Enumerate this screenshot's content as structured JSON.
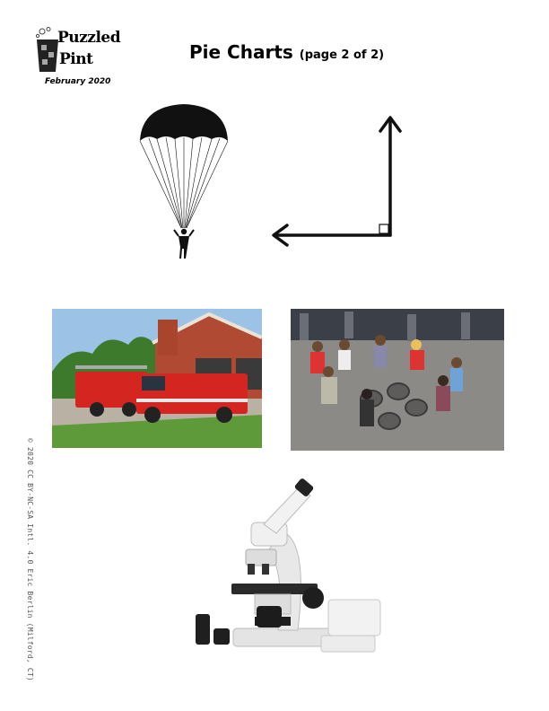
{
  "header": {
    "logo_line1": "Puzzled",
    "logo_line2": "Pint",
    "logo_date": "February 2020",
    "title": "Pie Charts",
    "title_sub": "(page 2 of 2)"
  },
  "copyright": "© 2020 CC BY-NC-SA Intl. 4.0  Eric Berlin (Milford, CT)",
  "images": [
    {
      "icon": "parachute-icon"
    },
    {
      "icon": "right-angle-arrows-icon"
    },
    {
      "icon": "fire-engines-photo"
    },
    {
      "icon": "dancing-kids-photo"
    },
    {
      "icon": "microscope-photo"
    }
  ]
}
